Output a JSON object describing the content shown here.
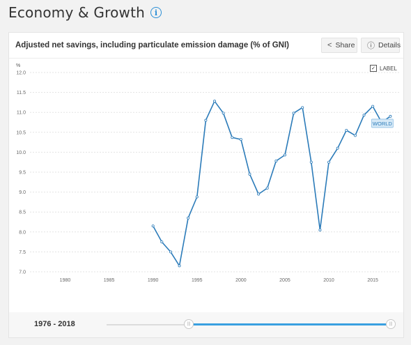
{
  "page": {
    "title": "Economy & Growth",
    "info_icon": "info-icon"
  },
  "card": {
    "title": "Adjusted net savings, including particulate emission damage (% of GNI)",
    "share_label": "Share",
    "share_icon": "share-icon",
    "details_label": "Details",
    "details_icon": "info-icon",
    "label_toggle": "LABEL",
    "label_checked": true
  },
  "footer": {
    "range_label": "1976 - 2018",
    "range_start_year": 1976,
    "range_end_year": 2018,
    "selected_start_fraction": 0.29,
    "selected_end_fraction": 1.0
  },
  "chart_data": {
    "type": "line",
    "title": "",
    "xlabel": "",
    "ylabel": "%",
    "xlim": [
      1976,
      2018
    ],
    "ylim": [
      7.0,
      12.0
    ],
    "y_ticks": [
      "7.0",
      "7.5",
      "8.0",
      "8.5",
      "9.0",
      "9.5",
      "10.0",
      "10.5",
      "11.0",
      "11.5",
      "12.0"
    ],
    "x_ticks": [
      "1980",
      "1985",
      "1990",
      "1995",
      "2000",
      "2005",
      "2010",
      "2015"
    ],
    "grid": true,
    "series": [
      {
        "name": "WORLD",
        "color": "#2b7bb9",
        "x": [
          1990,
          1991,
          1992,
          1993,
          1994,
          1995,
          1996,
          1997,
          1998,
          1999,
          2000,
          2001,
          2002,
          2003,
          2004,
          2005,
          2006,
          2007,
          2008,
          2009,
          2010,
          2011,
          2012,
          2013,
          2014,
          2015,
          2016,
          2017
        ],
        "y": [
          8.15,
          7.75,
          7.5,
          7.15,
          8.35,
          8.88,
          10.8,
          11.28,
          10.98,
          10.37,
          10.32,
          9.45,
          8.95,
          9.1,
          9.78,
          9.93,
          10.98,
          11.12,
          9.75,
          8.05,
          9.75,
          10.1,
          10.55,
          10.42,
          10.93,
          11.15,
          10.75,
          10.9
        ]
      }
    ]
  }
}
